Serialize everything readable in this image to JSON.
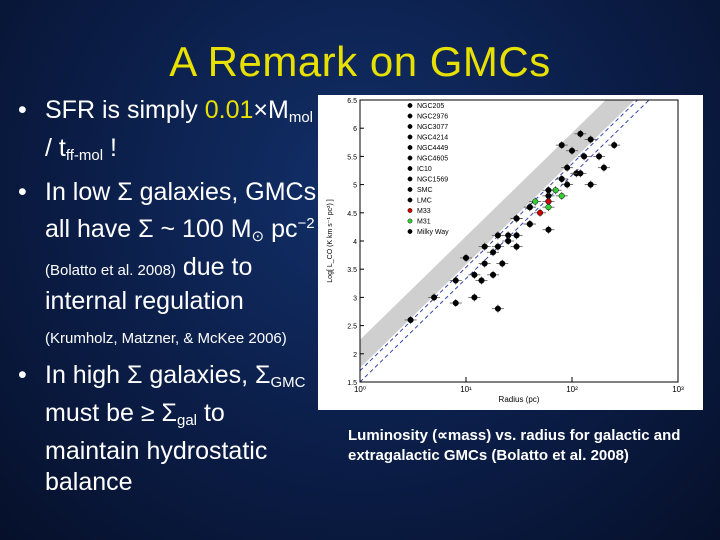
{
  "slide": {
    "title": "A Remark on GMCs",
    "bullet1": {
      "a": "SFR is simply ",
      "b": "0.01",
      "c": "×M",
      "d": "mol",
      "e": " / t",
      "f": "ff-mol",
      "g": " !"
    },
    "bullet2": {
      "a": "In low Σ galaxies, GMCs all have Σ ~ 100 M",
      "sun": "⊙",
      "b": " pc",
      "exp": "−2",
      "cite1": " (Bolatto et al. 2008)",
      "c": " due to internal regulation",
      "cite2": " (Krumholz, Matzner, & McKee 2006)"
    },
    "bullet3": {
      "a": "In high Σ galaxies, Σ",
      "sub1": "GMC",
      "b": " must be ≥ Σ",
      "sub2": "gal",
      "c": " to maintain hydrostatic balance"
    },
    "bullet_glyph": "•",
    "caption": "Luminosity (∝mass) vs. radius for galactic and extragalactic GMCs (Bolatto et al. 2008)"
  },
  "chart_data": {
    "type": "scatter",
    "xlabel": "Radius (pc)",
    "ylabel": "Log[ L_CO (K km s⁻¹ pc²) ]",
    "xscale": "log",
    "xlim": [
      1,
      1000
    ],
    "ylim": [
      1.5,
      6.5
    ],
    "x_ticks": [
      "10⁰",
      "10¹",
      "10²",
      "10³"
    ],
    "y_ticks": [
      "1.5",
      "2",
      "2.5",
      "3",
      "3.5",
      "4",
      "4.5",
      "5",
      "5.5",
      "6",
      "6.5"
    ],
    "legend_position": "top-left",
    "legend": [
      "NGC205",
      "NGC2976",
      "NGC3077",
      "NGC4214",
      "NGC4449",
      "NGC4605",
      "IC10",
      "NGC1569",
      "SMC",
      "LMC",
      "M33",
      "M31",
      "Milky Way"
    ],
    "series": [
      {
        "name": "NGC205",
        "color": "#000000",
        "x": [
          80,
          120
        ],
        "y": [
          5.7,
          5.9
        ]
      },
      {
        "name": "NGC2976",
        "color": "#000000",
        "x": [
          100,
          150
        ],
        "y": [
          5.6,
          5.8
        ]
      },
      {
        "name": "NGC3077",
        "color": "#000000",
        "x": [
          90,
          130
        ],
        "y": [
          5.3,
          5.5
        ]
      },
      {
        "name": "NGC4214",
        "color": "#000000",
        "x": [
          60,
          90,
          110
        ],
        "y": [
          4.8,
          5.0,
          5.2
        ]
      },
      {
        "name": "NGC4449",
        "color": "#000000",
        "x": [
          150,
          200,
          250
        ],
        "y": [
          5.0,
          5.3,
          5.7
        ]
      },
      {
        "name": "NGC4605",
        "color": "#000000",
        "x": [
          120,
          180
        ],
        "y": [
          5.2,
          5.5
        ]
      },
      {
        "name": "IC10",
        "color": "#000000",
        "x": [
          12,
          18,
          22,
          30
        ],
        "y": [
          3.4,
          3.8,
          3.6,
          3.9
        ]
      },
      {
        "name": "NGC1569",
        "color": "#000000",
        "x": [
          25,
          40,
          60
        ],
        "y": [
          4.1,
          4.3,
          4.2
        ]
      },
      {
        "name": "SMC",
        "color": "#000000",
        "x": [
          8,
          12,
          14,
          18,
          20
        ],
        "y": [
          2.9,
          3.0,
          3.3,
          3.4,
          2.8
        ]
      },
      {
        "name": "LMC",
        "color": "#000000",
        "x": [
          15,
          20,
          25,
          30,
          40
        ],
        "y": [
          3.6,
          3.9,
          4.0,
          4.1,
          4.3
        ]
      },
      {
        "name": "M33",
        "color": "#cc0000",
        "x": [
          30,
          40,
          50,
          60
        ],
        "y": [
          4.4,
          4.6,
          4.5,
          4.7
        ]
      },
      {
        "name": "M31",
        "color": "#33cc33",
        "x": [
          30,
          45,
          60,
          70,
          80
        ],
        "y": [
          4.4,
          4.7,
          4.6,
          4.9,
          4.8
        ]
      },
      {
        "name": "Milky Way",
        "color": "#000000",
        "x": [
          3,
          5,
          8,
          10,
          15,
          20,
          30,
          40,
          60,
          80
        ],
        "y": [
          2.6,
          3.0,
          3.3,
          3.7,
          3.9,
          4.1,
          4.4,
          4.6,
          4.9,
          5.1
        ]
      }
    ],
    "fit_band": {
      "x": [
        1,
        1000
      ],
      "y_center": [
        2.0,
        7.5
      ],
      "width": 0.25
    },
    "dashed_lines": [
      {
        "x": [
          1,
          1000
        ],
        "y": [
          1.7,
          7.2
        ]
      },
      {
        "x": [
          1,
          1000
        ],
        "y": [
          1.5,
          7.0
        ]
      }
    ]
  }
}
